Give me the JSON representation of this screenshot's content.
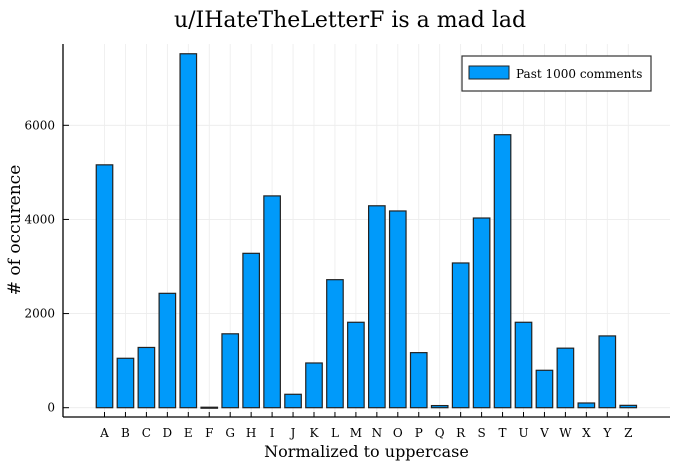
{
  "chart_data": {
    "type": "bar",
    "title": "u/IHateTheLetterF is a mad lad",
    "xlabel": "Normalized to uppercase",
    "ylabel": "# of occurence",
    "categories": [
      "A",
      "B",
      "C",
      "D",
      "E",
      "F",
      "G",
      "H",
      "I",
      "J",
      "K",
      "L",
      "M",
      "N",
      "O",
      "P",
      "Q",
      "R",
      "S",
      "T",
      "U",
      "V",
      "W",
      "X",
      "Y",
      "Z"
    ],
    "series": [
      {
        "name": "Past 1000 comments",
        "color": "#009AFA",
        "values": [
          5160,
          1050,
          1280,
          2430,
          7520,
          10,
          1570,
          3280,
          4500,
          285,
          950,
          2720,
          1815,
          4290,
          4180,
          1170,
          45,
          3075,
          4030,
          5800,
          1815,
          795,
          1265,
          100,
          1525,
          50
        ]
      }
    ],
    "yticks": [
      0,
      2000,
      4000,
      6000
    ],
    "ylim": [
      -200,
      7750
    ],
    "grid": true,
    "legend_position": "top-right"
  }
}
